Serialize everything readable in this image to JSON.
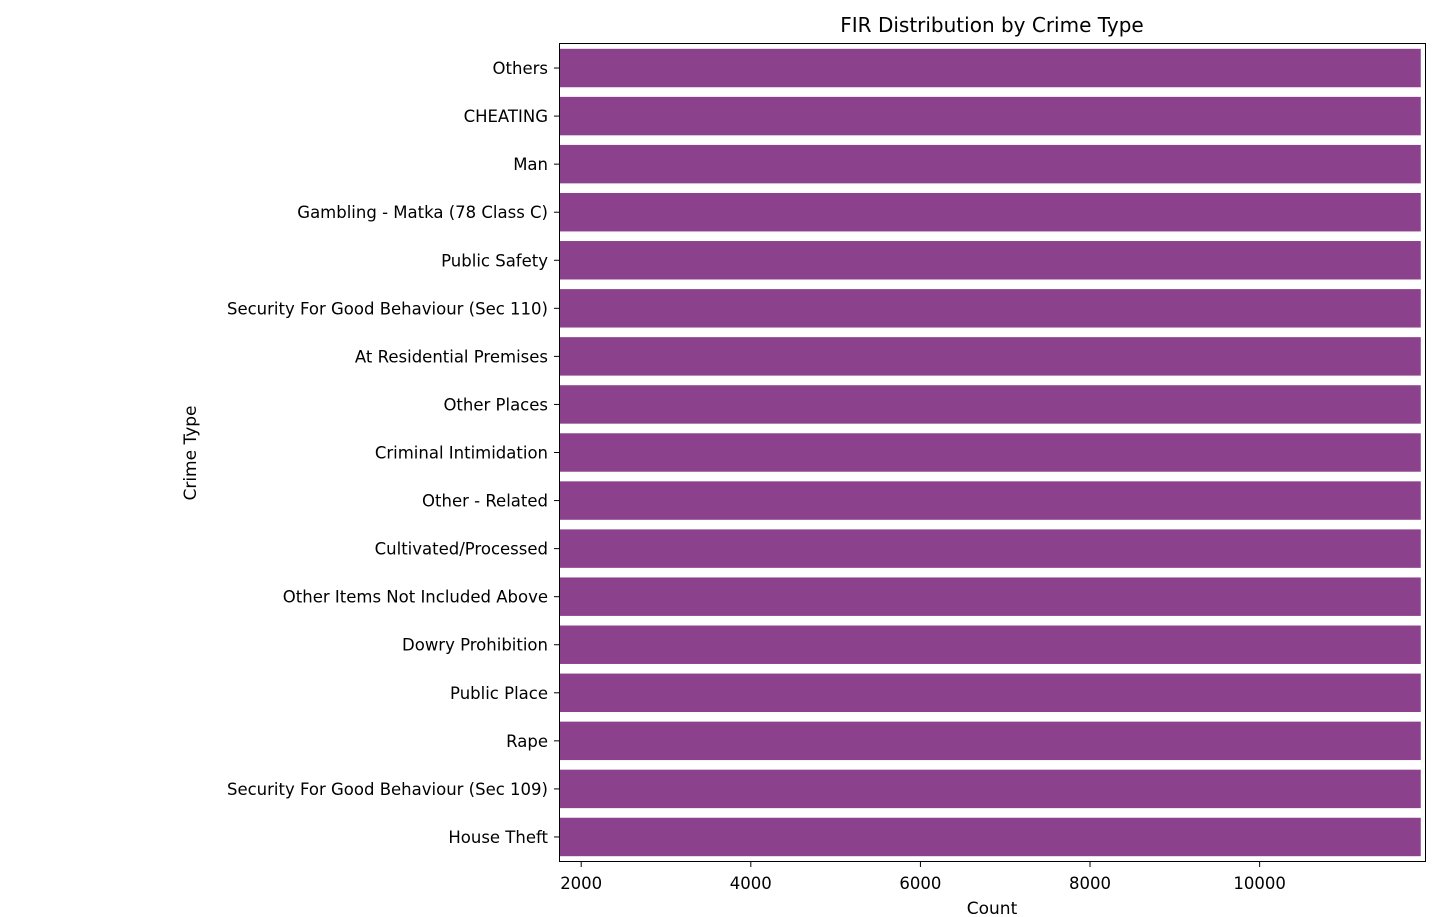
{
  "chart_data": {
    "type": "bar",
    "orientation": "horizontal",
    "title": "FIR Distribution by Crime Type",
    "xlabel": "Count",
    "ylabel": "Crime Type",
    "categories": [
      "Others",
      "CHEATING",
      "Man",
      "Gambling - Matka (78 Class C)",
      "Public Safety",
      "Security For Good Behaviour (Sec 110)",
      "At Residential Premises",
      "Other Places",
      "Criminal Intimidation",
      "Other - Related",
      "Cultivated/Processed",
      "Other Items Not Included Above",
      "Dowry Prohibition",
      "Public Place",
      "Rape",
      "Security For Good Behaviour (Sec 109)",
      "House Theft"
    ],
    "values": [
      11900,
      11900,
      11900,
      11900,
      11900,
      11900,
      11900,
      11900,
      11900,
      11900,
      11900,
      11900,
      11900,
      11900,
      11900,
      11900,
      11900
    ],
    "xlim": [
      1750,
      11950
    ],
    "xticks": [
      2000,
      4000,
      6000,
      8000,
      10000
    ],
    "bar_color": "#8b418b",
    "grid": false,
    "legend": "none"
  }
}
